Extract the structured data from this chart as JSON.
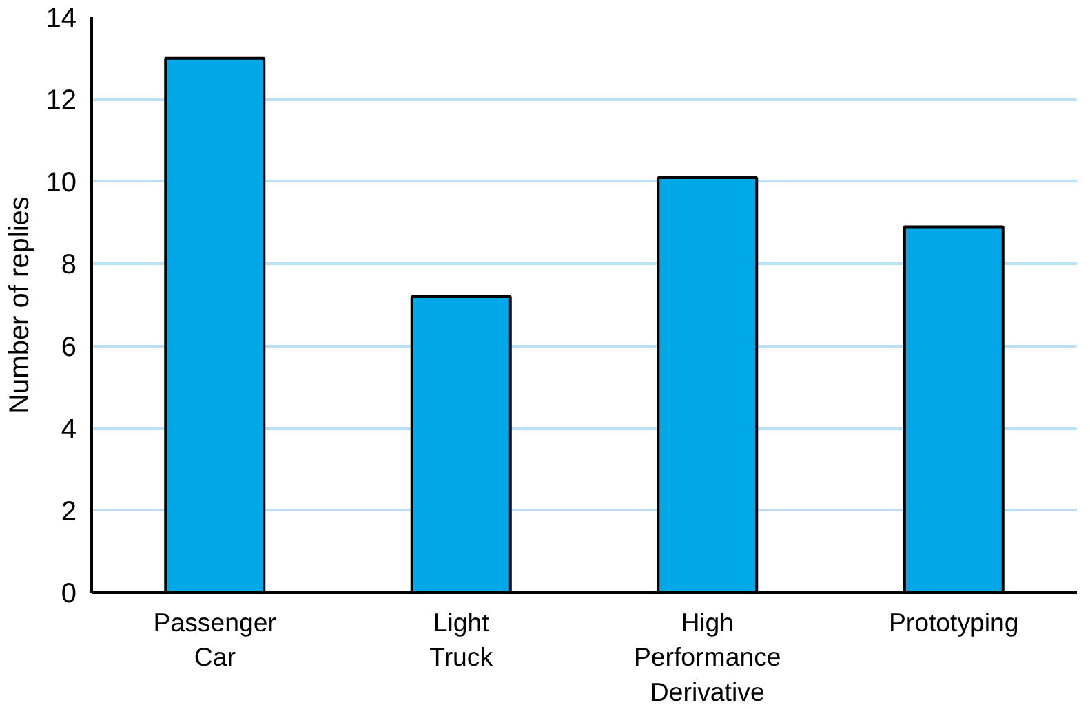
{
  "chart_data": {
    "type": "bar",
    "ylabel": "Number of replies",
    "categories": [
      "Passenger\nCar",
      "Light\nTruck",
      "High\nPerformance\nDerivative",
      "Prototyping"
    ],
    "values": [
      13,
      7.2,
      10.1,
      8.9
    ],
    "color": "#00a8e8",
    "ylim": [
      0,
      14
    ],
    "yticks": [
      0,
      2,
      4,
      6,
      8,
      10,
      12,
      14
    ],
    "grid": "y"
  }
}
